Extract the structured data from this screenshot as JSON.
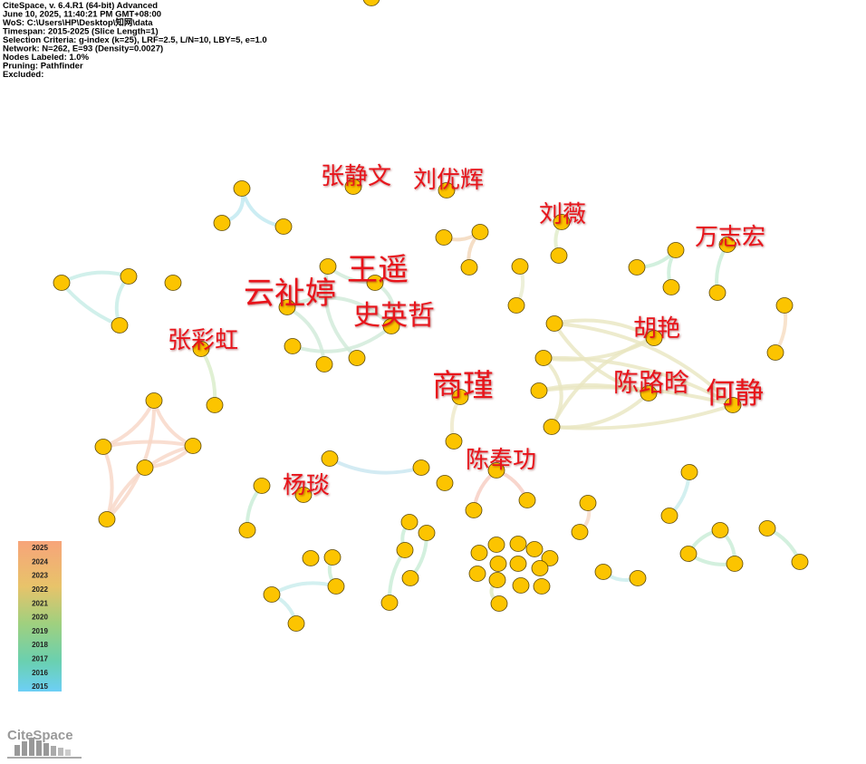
{
  "header": {
    "lines": [
      "CiteSpace, v. 6.4.R1 (64-bit) Advanced",
      "June 10, 2025, 11:40:21 PM GMT+08:00",
      "WoS: C:\\Users\\HP\\Desktop\\知网\\data",
      "Timespan: 2015-2025 (Slice Length=1)",
      "Selection Criteria: g-index (k=25), LRF=2.5, L/N=10, LBY=5, e=1.0",
      "Network: N=262, E=93 (Density=0.0027)",
      "Nodes Labeled: 1.0%",
      "Pruning: Pathfinder",
      "Excluded:"
    ]
  },
  "labels": [
    "张静文",
    "刘优辉",
    "刘薇",
    "万志宏",
    "王遥",
    "云祉婷",
    "史英哲",
    "张彩虹",
    "胡艳",
    "商瑾",
    "陈路晗",
    "何静",
    "陈奉功",
    "杨琰"
  ],
  "legend": {
    "years": [
      "2025",
      "2024",
      "2023",
      "2022",
      "2021",
      "2020",
      "2019",
      "2018",
      "2017",
      "2016",
      "2015"
    ]
  },
  "logo": "CiteSpace"
}
